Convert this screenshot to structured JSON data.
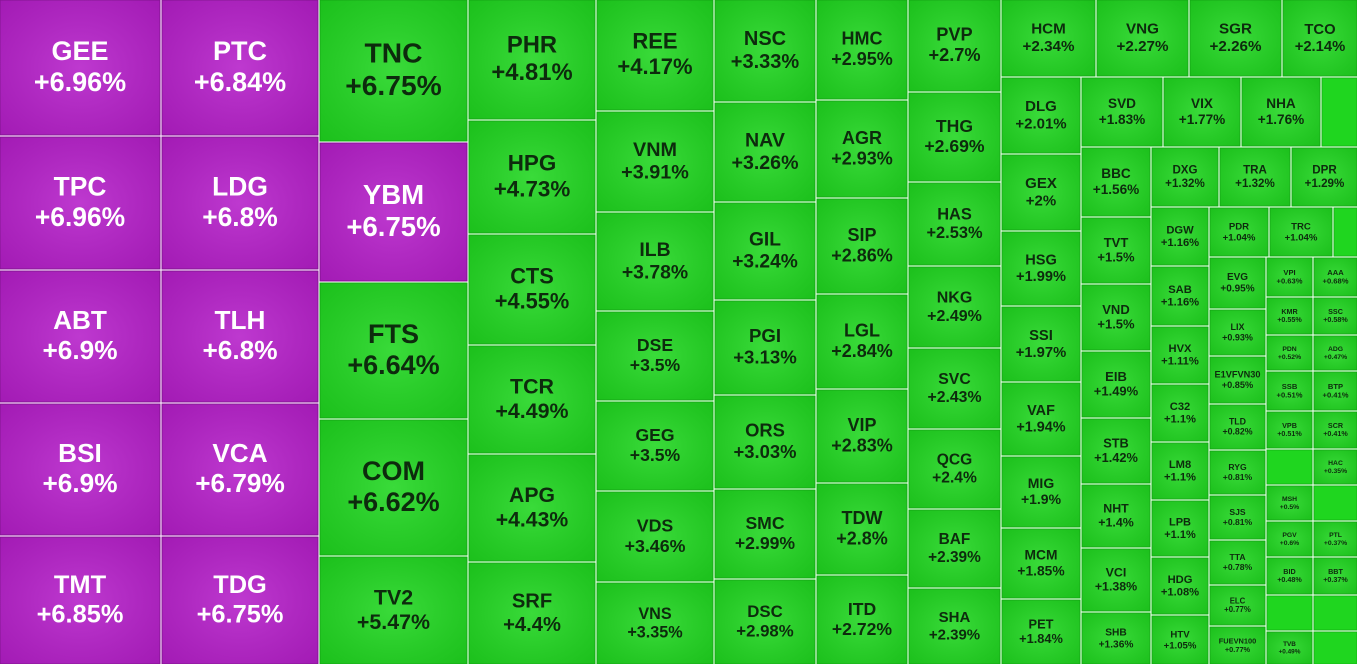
{
  "chart_data": {
    "type": "treemap",
    "categories": [
      "GEE",
      "TPC",
      "ABT",
      "BSI",
      "TMT",
      "PTC",
      "LDG",
      "TLH",
      "VCA",
      "TDG",
      "TNC",
      "YBM",
      "FTS",
      "COM",
      "TV2",
      "PHR",
      "HPG",
      "CTS",
      "TCR",
      "APG",
      "SRF",
      "REE",
      "VNM",
      "ILB",
      "DSE",
      "GEG",
      "VDS",
      "VNS",
      "NSC",
      "NAV",
      "GIL",
      "PGI",
      "ORS",
      "SMC",
      "DSC",
      "HMC",
      "AGR",
      "SIP",
      "LGL",
      "VIP",
      "TDW",
      "ITD",
      "PVP",
      "THG",
      "HAS",
      "NKG",
      "SVC",
      "QCG",
      "BAF",
      "SHA",
      "HCM",
      "VNG",
      "SGR",
      "TCO",
      "DLG",
      "GEX",
      "HSG",
      "SSI",
      "VAF",
      "MIG",
      "MCM",
      "PET",
      "SVD",
      "VIX",
      "NHA",
      "BBC",
      "TVT",
      "VND",
      "EIB",
      "STB",
      "NHT",
      "VCI",
      "SHB",
      "DXG",
      "TRA",
      "DPR",
      "DGW",
      "SAB",
      "HVX",
      "C32",
      "LM8",
      "LPB",
      "HDG",
      "HTV",
      "PDR",
      "TRC",
      "EVG",
      "LIX",
      "E1VFVN30",
      "TLD",
      "RYG",
      "SJS",
      "TTA",
      "ELC",
      "FUEVN100",
      "VPI",
      "AAA",
      "KMR",
      "SSC",
      "PDN",
      "ADG",
      "SSB",
      "BTP",
      "VPB",
      "SCR",
      "HAC",
      "MSH",
      "PTL",
      "PGV",
      "BBT",
      "BID",
      "TVB"
    ],
    "values": [
      6.96,
      6.96,
      6.9,
      6.9,
      6.85,
      6.84,
      6.8,
      6.8,
      6.79,
      6.75,
      6.75,
      6.75,
      6.64,
      6.62,
      5.47,
      4.81,
      4.73,
      4.55,
      4.49,
      4.43,
      4.4,
      4.17,
      3.91,
      3.78,
      3.5,
      3.5,
      3.46,
      3.35,
      3.33,
      3.26,
      3.24,
      3.13,
      3.03,
      2.99,
      2.98,
      2.95,
      2.93,
      2.86,
      2.84,
      2.83,
      2.8,
      2.72,
      2.7,
      2.69,
      2.53,
      2.49,
      2.43,
      2.4,
      2.39,
      2.39,
      2.34,
      2.27,
      2.26,
      2.14,
      2.01,
      2,
      1.99,
      1.97,
      1.94,
      1.9,
      1.85,
      1.84,
      1.83,
      1.77,
      1.76,
      1.56,
      1.5,
      1.5,
      1.49,
      1.42,
      1.4,
      1.38,
      1.36,
      1.32,
      1.32,
      1.29,
      1.16,
      1.16,
      1.11,
      1.1,
      1.1,
      1.1,
      1.08,
      1.05,
      1.04,
      1.04,
      0.95,
      0.93,
      0.85,
      0.82,
      0.81,
      0.81,
      0.78,
      0.77,
      0.77,
      0.63,
      0.68,
      0.55,
      0.58,
      0.52,
      0.47,
      0.51,
      0.41,
      0.51,
      0.41,
      0.35,
      0.5,
      0.37,
      0.6,
      0.37,
      0.48,
      0.49
    ],
    "value_labels": [
      "+6.96%",
      "+6.96%",
      "+6.9%",
      "+6.9%",
      "+6.85%",
      "+6.84%",
      "+6.8%",
      "+6.8%",
      "+6.79%",
      "+6.75%",
      "+6.75%",
      "+6.75%",
      "+6.64%",
      "+6.62%",
      "+5.47%",
      "+4.81%",
      "+4.73%",
      "+4.55%",
      "+4.49%",
      "+4.43%",
      "+4.4%",
      "+4.17%",
      "+3.91%",
      "+3.78%",
      "+3.5%",
      "+3.5%",
      "+3.46%",
      "+3.35%",
      "+3.33%",
      "+3.26%",
      "+3.24%",
      "+3.13%",
      "+3.03%",
      "+2.99%",
      "+2.98%",
      "+2.95%",
      "+2.93%",
      "+2.86%",
      "+2.84%",
      "+2.83%",
      "+2.8%",
      "+2.72%",
      "+2.7%",
      "+2.69%",
      "+2.53%",
      "+2.49%",
      "+2.43%",
      "+2.4%",
      "+2.39%",
      "+2.39%",
      "+2.34%",
      "+2.27%",
      "+2.26%",
      "+2.14%",
      "+2.01%",
      "+2%",
      "+1.99%",
      "+1.97%",
      "+1.94%",
      "+1.9%",
      "+1.85%",
      "+1.84%",
      "+1.83%",
      "+1.77%",
      "+1.76%",
      "+1.56%",
      "+1.5%",
      "+1.5%",
      "+1.49%",
      "+1.42%",
      "+1.4%",
      "+1.38%",
      "+1.36%",
      "+1.32%",
      "+1.32%",
      "+1.29%",
      "+1.16%",
      "+1.16%",
      "+1.11%",
      "+1.1%",
      "+1.1%",
      "+1.1%",
      "+1.08%",
      "+1.05%",
      "+1.04%",
      "+1.04%",
      "+0.95%",
      "+0.93%",
      "+0.85%",
      "+0.82%",
      "+0.81%",
      "+0.81%",
      "+0.78%",
      "+0.77%",
      "+0.77%",
      "+0.63%",
      "+0.68%",
      "+0.55%",
      "+0.58%",
      "+0.52%",
      "+0.47%",
      "+0.51%",
      "+0.41%",
      "+0.51%",
      "+0.41%",
      "+0.35%",
      "+0.5%",
      "+0.37%",
      "+0.6%",
      "+0.37%",
      "+0.48%",
      "+0.49%"
    ],
    "colors": [
      "#b51ec9",
      "#b51ec9",
      "#b51ec9",
      "#b51ec9",
      "#b51ec9",
      "#b51ec9",
      "#b51ec9",
      "#b51ec9",
      "#b51ec9",
      "#b51ec9",
      "#1fd61f",
      "#b51ec9",
      "#1fd61f",
      "#1fd61f",
      "#1fd61f",
      "#1fd61f",
      "#1fd61f",
      "#1fd61f",
      "#1fd61f",
      "#1fd61f",
      "#1fd61f",
      "#1fd61f",
      "#1fd61f",
      "#1fd61f",
      "#1fd61f",
      "#1fd61f",
      "#1fd61f",
      "#1fd61f",
      "#1fd61f",
      "#1fd61f",
      "#1fd61f",
      "#1fd61f",
      "#1fd61f",
      "#1fd61f",
      "#1fd61f",
      "#1fd61f",
      "#1fd61f",
      "#1fd61f",
      "#1fd61f",
      "#1fd61f",
      "#1fd61f",
      "#1fd61f",
      "#1fd61f",
      "#1fd61f",
      "#1fd61f",
      "#1fd61f",
      "#1fd61f",
      "#1fd61f",
      "#1fd61f",
      "#1fd61f",
      "#1fd61f",
      "#1fd61f",
      "#1fd61f",
      "#1fd61f",
      "#1fd61f",
      "#1fd61f",
      "#1fd61f",
      "#1fd61f",
      "#1fd61f",
      "#1fd61f",
      "#1fd61f",
      "#1fd61f",
      "#1fd61f",
      "#1fd61f",
      "#1fd61f",
      "#1fd61f",
      "#1fd61f",
      "#1fd61f",
      "#1fd61f",
      "#1fd61f",
      "#1fd61f",
      "#1fd61f",
      "#1fd61f",
      "#1fd61f",
      "#1fd61f",
      "#1fd61f",
      "#1fd61f",
      "#1fd61f",
      "#1fd61f",
      "#1fd61f",
      "#1fd61f",
      "#1fd61f",
      "#1fd61f",
      "#1fd61f",
      "#1fd61f",
      "#1fd61f",
      "#1fd61f",
      "#1fd61f",
      "#1fd61f",
      "#1fd61f",
      "#1fd61f",
      "#1fd61f",
      "#1fd61f",
      "#1fd61f",
      "#1fd61f",
      "#1fd61f",
      "#1fd61f",
      "#1fd61f",
      "#1fd61f",
      "#1fd61f",
      "#1fd61f",
      "#1fd61f",
      "#1fd61f",
      "#1fd61f",
      "#1fd61f",
      "#1fd61f",
      "#1fd61f",
      "#1fd61f",
      "#1fd61f",
      "#1fd61f",
      "#1fd61f",
      "#1fd61f"
    ]
  }
}
